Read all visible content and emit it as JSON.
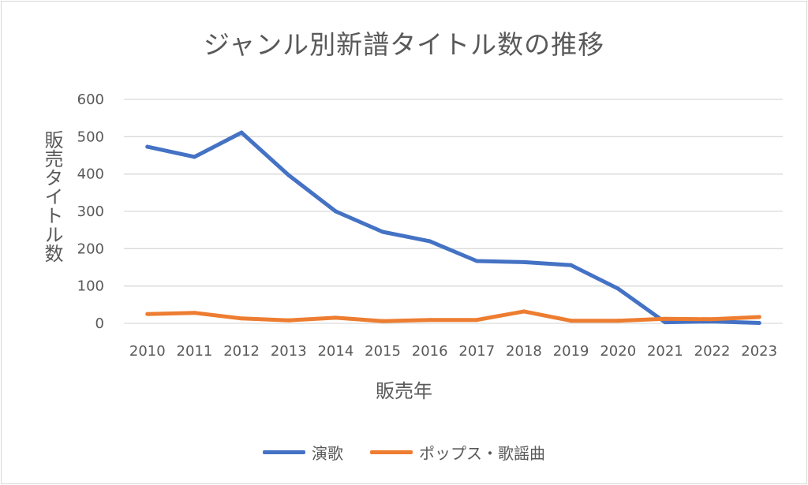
{
  "chart_data": {
    "type": "line",
    "title": "ジャンル別新譜タイトル数の推移",
    "xlabel": "販売年",
    "ylabel": "販売タイトル数",
    "categories": [
      "2010",
      "2011",
      "2012",
      "2013",
      "2014",
      "2015",
      "2016",
      "2017",
      "2018",
      "2019",
      "2020",
      "2021",
      "2022",
      "2023"
    ],
    "ylim": [
      0,
      600
    ],
    "yticks": [
      "0",
      "100",
      "200",
      "300",
      "400",
      "500",
      "600"
    ],
    "grid": true,
    "legend_position": "bottom",
    "series": [
      {
        "name": "演歌",
        "color": "#4472C4",
        "values": [
          473,
          446,
          511,
          397,
          300,
          245,
          220,
          167,
          164,
          156,
          93,
          3,
          5,
          1
        ]
      },
      {
        "name": "ポップス・歌謡曲",
        "color": "#ED7D31",
        "values": [
          25,
          28,
          13,
          8,
          15,
          6,
          9,
          9,
          32,
          7,
          7,
          12,
          11,
          17
        ]
      }
    ]
  }
}
